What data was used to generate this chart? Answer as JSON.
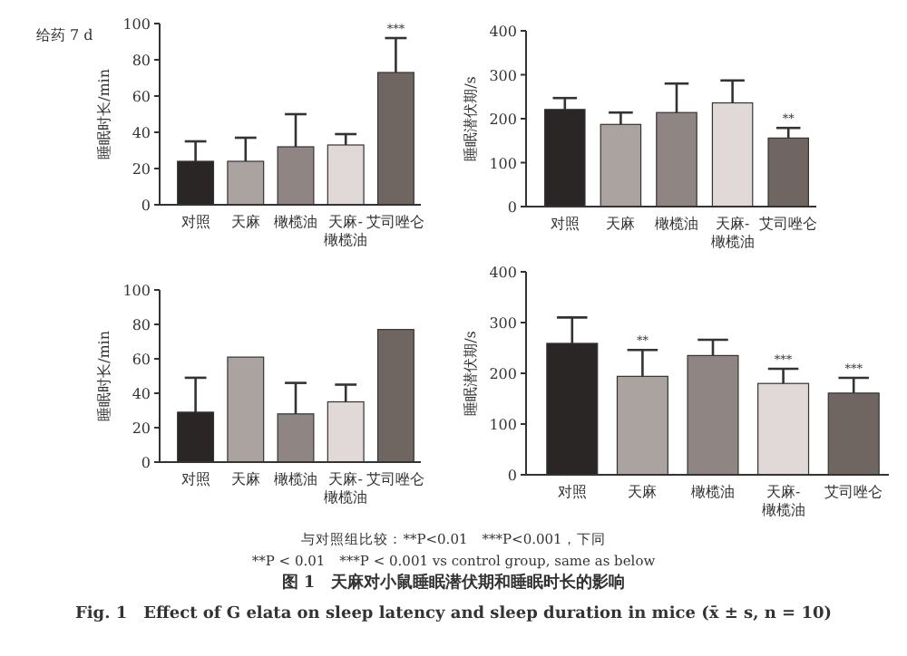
{
  "chart_data": [
    {
      "type": "bar",
      "ylabel": "睡眠时长/min",
      "categories": [
        "对照",
        "天麻",
        "橄榄油",
        "天麻-\n橄榄油",
        "艾司唑仑"
      ],
      "values": [
        24,
        24,
        32,
        33,
        73
      ],
      "errors": [
        11,
        13,
        18,
        6,
        19
      ],
      "colors": [
        "#2a2625",
        "#aaa3a0",
        "#8f8583",
        "#e0d9d7",
        "#706661"
      ],
      "ylim": [
        0,
        100
      ],
      "yticks": [
        0,
        20,
        40,
        60,
        80,
        100
      ],
      "annotations": [
        "给药 7 d",
        {
          "text": "***",
          "x": "艾司唑仑",
          "y": 92
        }
      ]
    },
    {
      "type": "bar",
      "ylabel": "睡眠潜伏期/s",
      "categories": [
        "对照",
        "天麻",
        "橄榄油",
        "天麻-\n橄榄油",
        "艾司唑仑"
      ],
      "values": [
        221,
        187,
        214,
        236,
        156
      ],
      "errors": [
        26,
        27,
        66,
        51,
        23
      ],
      "colors": [
        "#2a2625",
        "#aaa3a0",
        "#8f8583",
        "#e0d9d7",
        "#706661"
      ],
      "ylim": [
        0,
        400
      ],
      "yticks": [
        0,
        100,
        200,
        300,
        400
      ],
      "annotations": [
        {
          "text": "**",
          "x": "艾司唑仑",
          "y": 179
        }
      ]
    },
    {
      "type": "bar",
      "ylabel": "睡眠时长/min",
      "categories": [
        "对照",
        "天麻",
        "橄榄油",
        "天麻-\n橄榄油",
        "艾司唑仑"
      ],
      "values": [
        29,
        61,
        28,
        35,
        77
      ],
      "errors": [
        20,
        null,
        18,
        10,
        null
      ],
      "colors": [
        "#2a2625",
        "#aaa3a0",
        "#8f8583",
        "#e0d9d7",
        "#706661"
      ],
      "ylim": [
        0,
        100
      ],
      "yticks": [
        0,
        20,
        40,
        60,
        80,
        100
      ]
    },
    {
      "type": "bar",
      "ylabel": "睡眠潜伏期/s",
      "categories": [
        "对照",
        "天麻",
        "橄榄油",
        "天麻-\n橄榄油",
        "艾司唑仑"
      ],
      "values": [
        259,
        194,
        235,
        180,
        161
      ],
      "errors": [
        51,
        52,
        31,
        29,
        30
      ],
      "colors": [
        "#2a2625",
        "#aaa3a0",
        "#8f8583",
        "#e0d9d7",
        "#706661"
      ],
      "ylim": [
        0,
        400
      ],
      "yticks": [
        0,
        100,
        200,
        300,
        400
      ],
      "annotations": [
        {
          "text": "**",
          "x": "天麻",
          "y": 246
        },
        {
          "text": "***",
          "x": "天麻-\n橄榄油",
          "y": 209
        },
        {
          "text": "***",
          "x": "艾司唑仑",
          "y": 191
        },
        "与对照组比较：**P<0.01　***P<0.001，下同",
        "**P < 0.01　***P < 0.001 vs control group, same as below",
        "图 1　天麻对小鼠睡眠潜伏期和睡眠时长的影响",
        "Fig. 1　Effect of G elata on sleep latency and sleep duration in mice (x̄ ± s, n = 10)"
      ]
    }
  ]
}
